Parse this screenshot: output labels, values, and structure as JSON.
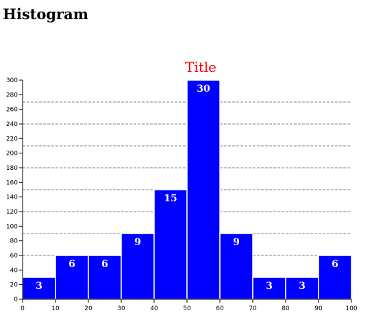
{
  "page": {
    "heading": "Histogram"
  },
  "colors": {
    "bar": "#0000ff",
    "bar_border": "#ffffff",
    "title": "#ff0000",
    "grid": "#808080",
    "axis": "#000000",
    "bar_label": "#ffffff"
  },
  "chart_data": {
    "type": "bar",
    "title": "Title",
    "xlabel": "",
    "ylabel": "",
    "bins": [
      [
        0,
        10
      ],
      [
        10,
        20
      ],
      [
        20,
        30
      ],
      [
        30,
        40
      ],
      [
        40,
        50
      ],
      [
        50,
        60
      ],
      [
        60,
        70
      ],
      [
        70,
        80
      ],
      [
        80,
        90
      ],
      [
        90,
        100
      ]
    ],
    "values": [
      30,
      60,
      60,
      90,
      150,
      300,
      90,
      30,
      30,
      60
    ],
    "bar_labels": [
      "3",
      "6",
      "6",
      "9",
      "15",
      "30",
      "9",
      "3",
      "3",
      "6"
    ],
    "xlim": [
      0,
      100
    ],
    "ylim": [
      0,
      300
    ],
    "x_ticks": [
      "0",
      "10",
      "20",
      "30",
      "40",
      "50",
      "60",
      "70",
      "80",
      "90",
      "100"
    ],
    "y_ticks": [
      "0",
      "20",
      "40",
      "60",
      "80",
      "100",
      "120",
      "140",
      "160",
      "180",
      "200",
      "220",
      "240",
      "260",
      "280",
      "300"
    ],
    "grid_lines": [
      30,
      60,
      90,
      120,
      150,
      180,
      210,
      240,
      270
    ],
    "grid": true
  }
}
